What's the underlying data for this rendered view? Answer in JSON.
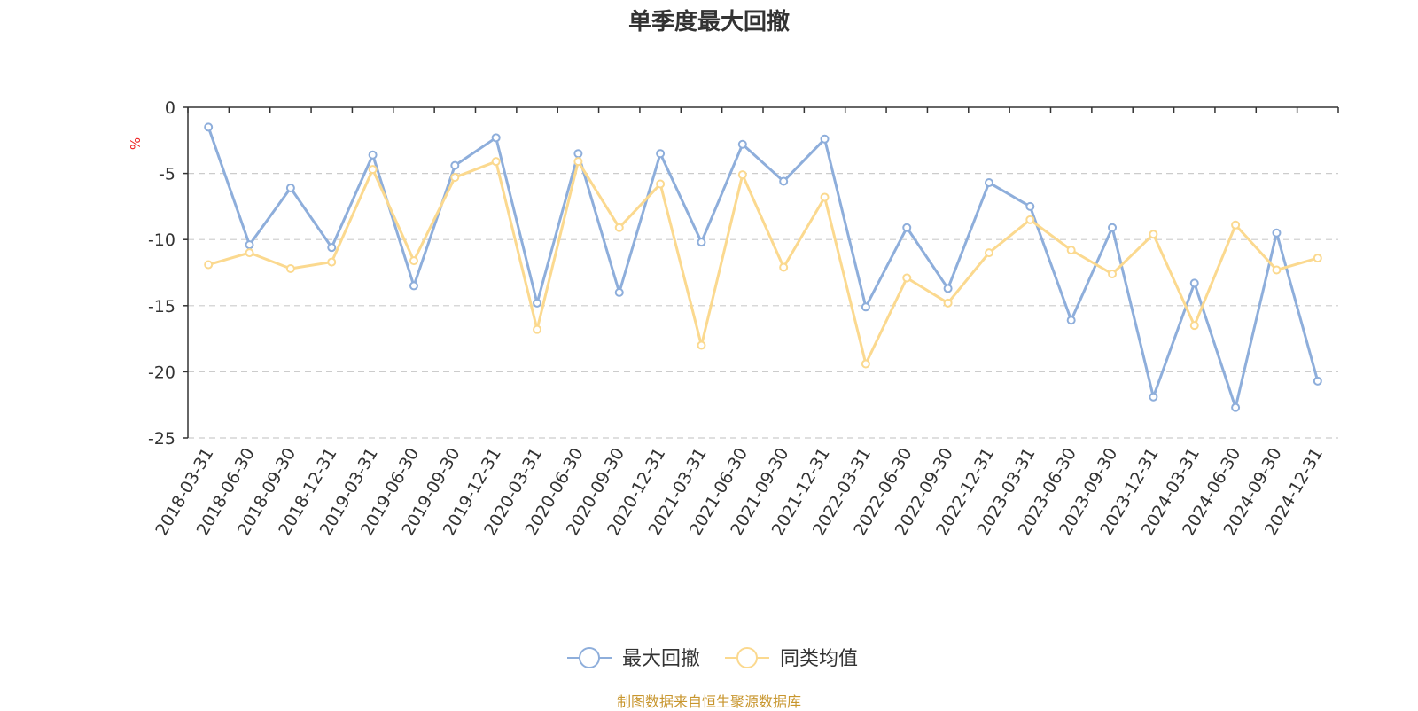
{
  "chart_data": {
    "type": "line",
    "title": "单季度最大回撤",
    "ylabel": "%",
    "xlabel": "",
    "ylim": [
      -25,
      0
    ],
    "yticks": [
      0,
      -5,
      -10,
      -15,
      -20,
      -25
    ],
    "grid": true,
    "legend_position": "bottom-center",
    "categories": [
      "2018-03-31",
      "2018-06-30",
      "2018-09-30",
      "2018-12-31",
      "2019-03-31",
      "2019-06-30",
      "2019-09-30",
      "2019-12-31",
      "2020-03-31",
      "2020-06-30",
      "2020-09-30",
      "2020-12-31",
      "2021-03-31",
      "2021-06-30",
      "2021-09-30",
      "2021-12-31",
      "2022-03-31",
      "2022-06-30",
      "2022-09-30",
      "2022-12-31",
      "2023-03-31",
      "2023-06-30",
      "2023-09-30",
      "2023-12-31",
      "2024-03-31",
      "2024-06-30",
      "2024-09-30",
      "2024-12-31"
    ],
    "series": [
      {
        "name": "最大回撤",
        "color": "#8eaedb",
        "values": [
          -1.5,
          -10.4,
          -6.1,
          -10.6,
          -3.6,
          -13.5,
          -4.4,
          -2.3,
          -14.8,
          -3.5,
          -14.0,
          -3.5,
          -10.2,
          -2.8,
          -5.6,
          -2.4,
          -15.1,
          -9.1,
          -13.7,
          -5.7,
          -7.5,
          -16.1,
          -9.1,
          -21.9,
          -13.3,
          -22.7,
          -9.5,
          -20.7
        ]
      },
      {
        "name": "同类均值",
        "color": "#fbd98f",
        "values": [
          -11.9,
          -11.0,
          -12.2,
          -11.7,
          -4.7,
          -11.6,
          -5.3,
          -4.1,
          -16.8,
          -4.1,
          -9.1,
          -5.8,
          -18.0,
          -5.1,
          -12.1,
          -6.8,
          -19.4,
          -12.9,
          -14.8,
          -11.0,
          -8.5,
          -10.8,
          -12.6,
          -9.6,
          -16.5,
          -8.9,
          -12.3,
          -11.4
        ]
      }
    ]
  },
  "source_note": "制图数据来自恒生聚源数据库"
}
